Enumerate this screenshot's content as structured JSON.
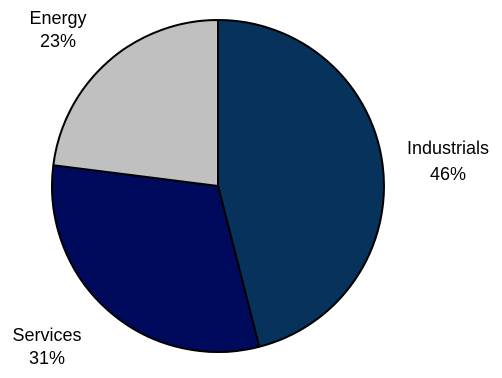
{
  "chart_data": {
    "type": "pie",
    "title": "",
    "categories": [
      "Industrials",
      "Services",
      "Energy"
    ],
    "values": [
      46,
      31,
      23
    ],
    "value_labels": [
      "46%",
      "31%",
      "23%"
    ],
    "colors": [
      "#06325C",
      "#000A5C",
      "#C0C0C0"
    ],
    "start_angle_deg": 0,
    "direction": "clockwise",
    "legend": "none",
    "outline_color": "#000000"
  }
}
